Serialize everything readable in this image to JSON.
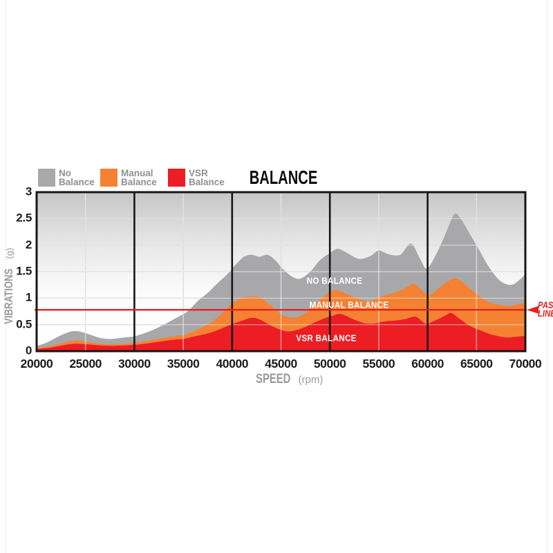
{
  "title": "BALANCE",
  "legend": {
    "items": [
      {
        "line1": "No",
        "line2": "Balance",
        "color": "#a7a9ac"
      },
      {
        "line1": "Manual",
        "line2": "Balance",
        "color": "#f58233"
      },
      {
        "line1": "VSR",
        "line2": "Balance",
        "color": "#ec1d23"
      }
    ]
  },
  "chart_data": {
    "type": "area",
    "title": "BALANCE",
    "xlabel": "SPEED",
    "xlabel_unit": "(rpm)",
    "ylabel": "VIBRATIONS",
    "ylabel_unit": "(g)",
    "xlim": [
      20000,
      70000
    ],
    "ylim": [
      0,
      3
    ],
    "x_tick_values": [
      20000,
      25000,
      30000,
      35000,
      40000,
      45000,
      50000,
      55000,
      60000,
      65000,
      70000
    ],
    "x_tick_labels": [
      "20000",
      "25000",
      "30000",
      "35000",
      "40000",
      "45000",
      "50000",
      "55000",
      "60000",
      "65000",
      "70000"
    ],
    "y_tick_values": [
      0,
      0.5,
      1,
      1.5,
      2,
      2.5,
      3
    ],
    "y_tick_labels": [
      "0",
      "0.5",
      "1",
      "1.5",
      "2",
      "2.5",
      "3"
    ],
    "x_major_gridlines": [
      30000,
      40000,
      50000,
      60000
    ],
    "x_minor_gridlines": [
      25000,
      35000,
      45000,
      55000,
      65000
    ],
    "grid": true,
    "legend_position": "top",
    "pass_line": {
      "value": 0.78,
      "line1": "PASS",
      "line2": "LINE",
      "color": "#e42320"
    },
    "series": [
      {
        "name": "No Balance",
        "in_chart_label": "NO BALANCE",
        "label_x_rpm": 50500,
        "label_y_value": 1.33,
        "color": "#a8a8aa",
        "points": [
          [
            20000,
            0.1
          ],
          [
            21000,
            0.16
          ],
          [
            22500,
            0.3
          ],
          [
            23800,
            0.38
          ],
          [
            25000,
            0.34
          ],
          [
            26300,
            0.26
          ],
          [
            27500,
            0.23
          ],
          [
            29000,
            0.26
          ],
          [
            30000,
            0.28
          ],
          [
            31500,
            0.37
          ],
          [
            33000,
            0.5
          ],
          [
            34500,
            0.65
          ],
          [
            35500,
            0.76
          ],
          [
            36500,
            0.95
          ],
          [
            37500,
            1.1
          ],
          [
            38500,
            1.28
          ],
          [
            39500,
            1.45
          ],
          [
            40300,
            1.62
          ],
          [
            41200,
            1.78
          ],
          [
            42000,
            1.82
          ],
          [
            42800,
            1.78
          ],
          [
            43600,
            1.82
          ],
          [
            44400,
            1.72
          ],
          [
            45200,
            1.55
          ],
          [
            46200,
            1.4
          ],
          [
            47000,
            1.37
          ],
          [
            48000,
            1.5
          ],
          [
            49000,
            1.72
          ],
          [
            50000,
            1.85
          ],
          [
            50800,
            1.93
          ],
          [
            51800,
            1.85
          ],
          [
            53000,
            1.74
          ],
          [
            54200,
            1.8
          ],
          [
            55000,
            1.9
          ],
          [
            56000,
            1.83
          ],
          [
            57200,
            1.82
          ],
          [
            58300,
            2.03
          ],
          [
            59200,
            1.75
          ],
          [
            59900,
            1.56
          ],
          [
            60800,
            1.8
          ],
          [
            61800,
            2.2
          ],
          [
            62700,
            2.58
          ],
          [
            63300,
            2.52
          ],
          [
            64200,
            2.25
          ],
          [
            65300,
            1.9
          ],
          [
            66300,
            1.58
          ],
          [
            67400,
            1.33
          ],
          [
            68500,
            1.25
          ],
          [
            69300,
            1.33
          ],
          [
            70000,
            1.45
          ]
        ]
      },
      {
        "name": "Manual Balance",
        "in_chart_label": "MANUAL BALANCE",
        "label_x_rpm": 52000,
        "label_y_value": 0.87,
        "color": "#f58233",
        "points": [
          [
            20000,
            0.06
          ],
          [
            21500,
            0.1
          ],
          [
            23000,
            0.17
          ],
          [
            24000,
            0.2
          ],
          [
            25000,
            0.18
          ],
          [
            26500,
            0.14
          ],
          [
            28000,
            0.13
          ],
          [
            30000,
            0.16
          ],
          [
            31500,
            0.2
          ],
          [
            33000,
            0.25
          ],
          [
            34300,
            0.29
          ],
          [
            35000,
            0.3
          ],
          [
            36000,
            0.37
          ],
          [
            37000,
            0.46
          ],
          [
            38000,
            0.56
          ],
          [
            39000,
            0.72
          ],
          [
            40000,
            0.9
          ],
          [
            41000,
            1.0
          ],
          [
            42000,
            1.03
          ],
          [
            43000,
            1.0
          ],
          [
            44000,
            0.85
          ],
          [
            45000,
            0.7
          ],
          [
            45800,
            0.64
          ],
          [
            46800,
            0.65
          ],
          [
            47800,
            0.76
          ],
          [
            48800,
            0.93
          ],
          [
            49800,
            1.1
          ],
          [
            50600,
            1.15
          ],
          [
            51600,
            1.09
          ],
          [
            52600,
            1.01
          ],
          [
            54000,
            0.94
          ],
          [
            55200,
            1.03
          ],
          [
            56500,
            1.1
          ],
          [
            57500,
            1.17
          ],
          [
            58600,
            1.27
          ],
          [
            59500,
            1.13
          ],
          [
            60200,
            1.06
          ],
          [
            61200,
            1.2
          ],
          [
            62200,
            1.33
          ],
          [
            62900,
            1.38
          ],
          [
            63800,
            1.27
          ],
          [
            65000,
            1.08
          ],
          [
            66200,
            0.93
          ],
          [
            67300,
            0.88
          ],
          [
            68300,
            0.85
          ],
          [
            69200,
            0.88
          ],
          [
            70000,
            0.92
          ]
        ]
      },
      {
        "name": "VSR Balance",
        "in_chart_label": "VSR BALANCE",
        "label_x_rpm": 49650,
        "label_y_value": 0.25,
        "color": "#ec1d23",
        "points": [
          [
            20000,
            0.04
          ],
          [
            21500,
            0.07
          ],
          [
            23000,
            0.12
          ],
          [
            24000,
            0.14
          ],
          [
            25000,
            0.13
          ],
          [
            26500,
            0.11
          ],
          [
            28000,
            0.1
          ],
          [
            30000,
            0.12
          ],
          [
            31500,
            0.15
          ],
          [
            33000,
            0.19
          ],
          [
            34300,
            0.22
          ],
          [
            35000,
            0.23
          ],
          [
            36200,
            0.28
          ],
          [
            37400,
            0.33
          ],
          [
            38600,
            0.4
          ],
          [
            39800,
            0.5
          ],
          [
            40800,
            0.56
          ],
          [
            42000,
            0.63
          ],
          [
            42900,
            0.59
          ],
          [
            44000,
            0.48
          ],
          [
            45000,
            0.4
          ],
          [
            45800,
            0.37
          ],
          [
            47000,
            0.42
          ],
          [
            48200,
            0.52
          ],
          [
            49300,
            0.61
          ],
          [
            50300,
            0.67
          ],
          [
            51100,
            0.7
          ],
          [
            52300,
            0.61
          ],
          [
            53500,
            0.53
          ],
          [
            54500,
            0.52
          ],
          [
            55500,
            0.56
          ],
          [
            56800,
            0.58
          ],
          [
            57800,
            0.61
          ],
          [
            58800,
            0.65
          ],
          [
            59800,
            0.52
          ],
          [
            60800,
            0.58
          ],
          [
            61800,
            0.67
          ],
          [
            62400,
            0.72
          ],
          [
            63200,
            0.62
          ],
          [
            64300,
            0.48
          ],
          [
            65400,
            0.39
          ],
          [
            66600,
            0.31
          ],
          [
            68000,
            0.26
          ],
          [
            69000,
            0.27
          ],
          [
            70000,
            0.29
          ]
        ]
      }
    ]
  }
}
